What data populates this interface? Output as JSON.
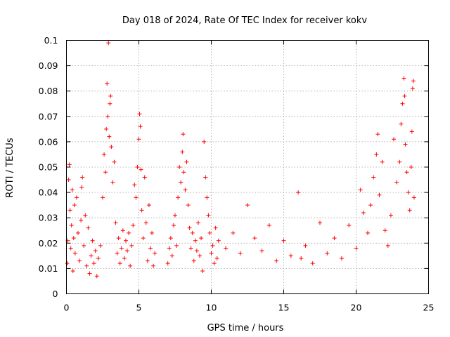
{
  "chart_data": {
    "type": "scatter",
    "title": "Day 018 of 2024, Rate Of TEC Index for receiver kokv",
    "xlabel": "GPS time / hours",
    "ylabel": "ROTI / TECUs",
    "xlim": [
      0,
      25
    ],
    "ylim": [
      0,
      0.1
    ],
    "x_ticks": [
      0,
      5,
      10,
      15,
      20,
      25
    ],
    "x_tick_labels": [
      "0",
      "5",
      "10",
      "15",
      "20",
      "25"
    ],
    "y_ticks": [
      0,
      0.01,
      0.02,
      0.03,
      0.04,
      0.05,
      0.06,
      0.07,
      0.08,
      0.09,
      0.1
    ],
    "y_tick_labels": [
      "0",
      "0.01",
      "0.02",
      "0.03",
      "0.04",
      "0.05",
      "0.06",
      "0.07",
      "0.08",
      "0.09",
      "0.1"
    ],
    "grid": true,
    "marker": "+",
    "color": "#ff0000",
    "series": [
      {
        "name": "ROTI",
        "points": [
          [
            0.05,
            0.012
          ],
          [
            0.1,
            0.021
          ],
          [
            0.15,
            0.045
          ],
          [
            0.2,
            0.051
          ],
          [
            0.25,
            0.033
          ],
          [
            0.3,
            0.018
          ],
          [
            0.35,
            0.027
          ],
          [
            0.4,
            0.041
          ],
          [
            0.45,
            0.009
          ],
          [
            0.5,
            0.022
          ],
          [
            0.55,
            0.035
          ],
          [
            0.6,
            0.016
          ],
          [
            0.7,
            0.038
          ],
          [
            0.8,
            0.024
          ],
          [
            0.9,
            0.013
          ],
          [
            1.0,
            0.029
          ],
          [
            1.05,
            0.042
          ],
          [
            1.1,
            0.046
          ],
          [
            1.2,
            0.019
          ],
          [
            1.3,
            0.031
          ],
          [
            1.4,
            0.011
          ],
          [
            1.5,
            0.026
          ],
          [
            1.6,
            0.008
          ],
          [
            1.7,
            0.015
          ],
          [
            1.8,
            0.021
          ],
          [
            1.9,
            0.012
          ],
          [
            2.0,
            0.017
          ],
          [
            2.1,
            0.007
          ],
          [
            2.2,
            0.014
          ],
          [
            2.35,
            0.019
          ],
          [
            2.5,
            0.038
          ],
          [
            2.6,
            0.055
          ],
          [
            2.7,
            0.048
          ],
          [
            2.75,
            0.065
          ],
          [
            2.8,
            0.083
          ],
          [
            2.85,
            0.07
          ],
          [
            2.9,
            0.099
          ],
          [
            2.95,
            0.062
          ],
          [
            3.0,
            0.075
          ],
          [
            3.05,
            0.078
          ],
          [
            3.1,
            0.058
          ],
          [
            3.2,
            0.044
          ],
          [
            3.3,
            0.052
          ],
          [
            3.4,
            0.028
          ],
          [
            3.5,
            0.016
          ],
          [
            3.6,
            0.022
          ],
          [
            3.7,
            0.012
          ],
          [
            3.8,
            0.018
          ],
          [
            3.9,
            0.025
          ],
          [
            4.0,
            0.014
          ],
          [
            4.1,
            0.021
          ],
          [
            4.2,
            0.017
          ],
          [
            4.3,
            0.024
          ],
          [
            4.4,
            0.011
          ],
          [
            4.5,
            0.019
          ],
          [
            4.6,
            0.027
          ],
          [
            4.7,
            0.043
          ],
          [
            4.8,
            0.038
          ],
          [
            4.9,
            0.05
          ],
          [
            5.0,
            0.061
          ],
          [
            5.05,
            0.071
          ],
          [
            5.1,
            0.066
          ],
          [
            5.15,
            0.049
          ],
          [
            5.2,
            0.033
          ],
          [
            5.3,
            0.022
          ],
          [
            5.4,
            0.046
          ],
          [
            5.5,
            0.028
          ],
          [
            5.6,
            0.013
          ],
          [
            5.7,
            0.035
          ],
          [
            5.8,
            0.018
          ],
          [
            5.9,
            0.024
          ],
          [
            6.0,
            0.011
          ],
          [
            6.1,
            0.016
          ],
          [
            7.0,
            0.012
          ],
          [
            7.1,
            0.018
          ],
          [
            7.2,
            0.022
          ],
          [
            7.3,
            0.015
          ],
          [
            7.4,
            0.027
          ],
          [
            7.5,
            0.031
          ],
          [
            7.6,
            0.019
          ],
          [
            7.7,
            0.038
          ],
          [
            7.8,
            0.05
          ],
          [
            7.9,
            0.044
          ],
          [
            8.0,
            0.056
          ],
          [
            8.05,
            0.063
          ],
          [
            8.1,
            0.048
          ],
          [
            8.2,
            0.041
          ],
          [
            8.3,
            0.052
          ],
          [
            8.4,
            0.035
          ],
          [
            8.5,
            0.026
          ],
          [
            8.6,
            0.018
          ],
          [
            8.7,
            0.024
          ],
          [
            8.8,
            0.013
          ],
          [
            8.9,
            0.021
          ],
          [
            9.0,
            0.017
          ],
          [
            9.1,
            0.028
          ],
          [
            9.2,
            0.015
          ],
          [
            9.3,
            0.022
          ],
          [
            9.4,
            0.009
          ],
          [
            9.5,
            0.06
          ],
          [
            9.6,
            0.046
          ],
          [
            9.7,
            0.038
          ],
          [
            9.8,
            0.031
          ],
          [
            9.9,
            0.024
          ],
          [
            10.0,
            0.016
          ],
          [
            10.1,
            0.019
          ],
          [
            10.2,
            0.012
          ],
          [
            10.3,
            0.026
          ],
          [
            10.4,
            0.014
          ],
          [
            10.5,
            0.021
          ],
          [
            11.0,
            0.018
          ],
          [
            11.5,
            0.024
          ],
          [
            12.0,
            0.016
          ],
          [
            12.5,
            0.035
          ],
          [
            13.0,
            0.022
          ],
          [
            13.5,
            0.017
          ],
          [
            14.0,
            0.027
          ],
          [
            14.5,
            0.013
          ],
          [
            15.0,
            0.021
          ],
          [
            15.5,
            0.015
          ],
          [
            16.0,
            0.04
          ],
          [
            16.2,
            0.014
          ],
          [
            16.5,
            0.019
          ],
          [
            17.0,
            0.012
          ],
          [
            17.5,
            0.028
          ],
          [
            18.0,
            0.016
          ],
          [
            18.5,
            0.022
          ],
          [
            19.0,
            0.014
          ],
          [
            19.5,
            0.027
          ],
          [
            20.0,
            0.018
          ],
          [
            20.3,
            0.041
          ],
          [
            20.5,
            0.032
          ],
          [
            20.8,
            0.024
          ],
          [
            21.0,
            0.035
          ],
          [
            21.2,
            0.046
          ],
          [
            21.4,
            0.055
          ],
          [
            21.5,
            0.063
          ],
          [
            21.6,
            0.039
          ],
          [
            21.8,
            0.052
          ],
          [
            22.0,
            0.025
          ],
          [
            22.2,
            0.019
          ],
          [
            22.4,
            0.031
          ],
          [
            22.6,
            0.061
          ],
          [
            22.8,
            0.044
          ],
          [
            23.0,
            0.052
          ],
          [
            23.1,
            0.067
          ],
          [
            23.2,
            0.075
          ],
          [
            23.3,
            0.085
          ],
          [
            23.35,
            0.078
          ],
          [
            23.4,
            0.059
          ],
          [
            23.5,
            0.048
          ],
          [
            23.6,
            0.04
          ],
          [
            23.7,
            0.033
          ],
          [
            23.8,
            0.05
          ],
          [
            23.85,
            0.064
          ],
          [
            23.9,
            0.081
          ],
          [
            23.95,
            0.084
          ],
          [
            24.0,
            0.038
          ]
        ]
      }
    ]
  }
}
